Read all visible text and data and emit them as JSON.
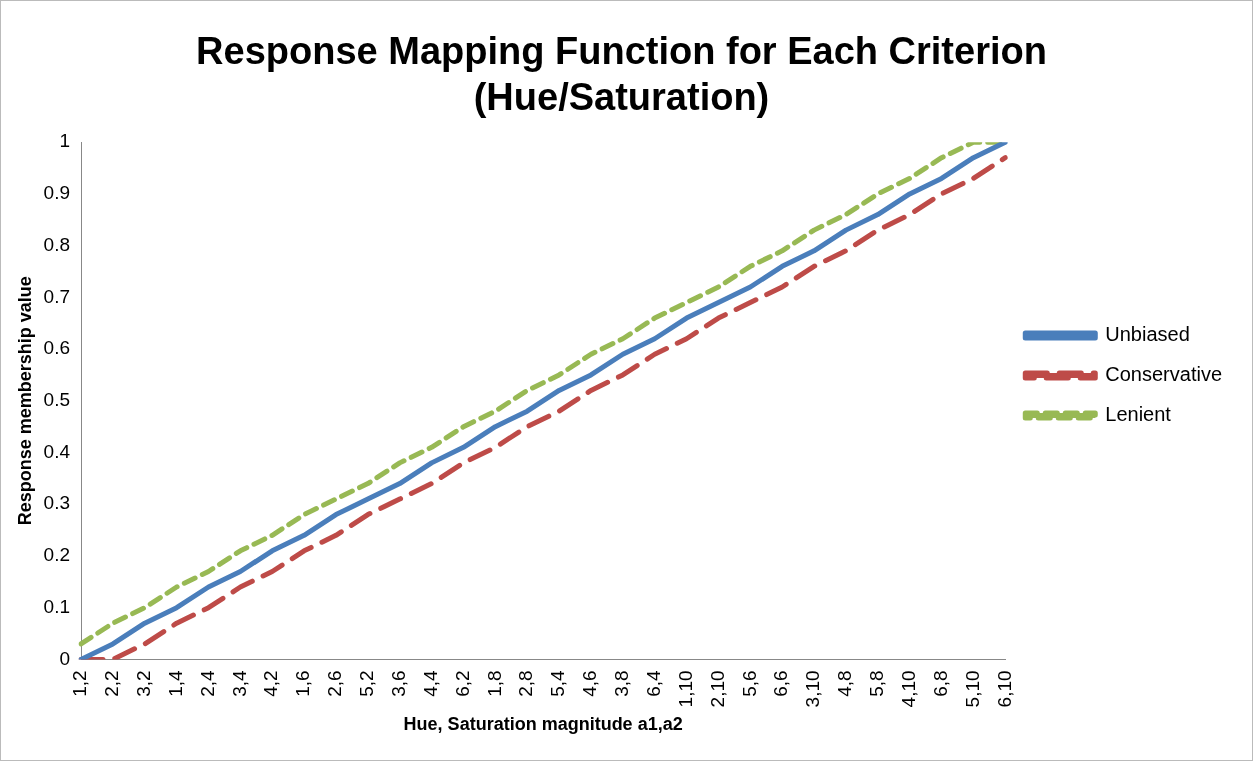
{
  "chart_data": {
    "type": "line",
    "title": "Response Mapping Function for Each Criterion (Hue/Saturation)",
    "xlabel": "Hue, Saturation magnitude a1,a2",
    "ylabel": "Response membership value",
    "categories": [
      "1,2",
      "2,2",
      "3,2",
      "1,4",
      "2,4",
      "3,4",
      "4,2",
      "1,6",
      "2,6",
      "5,2",
      "3,6",
      "4,4",
      "6,2",
      "1,8",
      "2,8",
      "5,4",
      "4,6",
      "3,8",
      "6,4",
      "1,10",
      "2,10",
      "5,6",
      "6,6",
      "3,10",
      "4,8",
      "5,8",
      "4,10",
      "6,8",
      "5,10",
      "6,10"
    ],
    "series": [
      {
        "name": "Unbiased",
        "color": "#4a7ebb",
        "line_style": "solid",
        "values": [
          0,
          0.03,
          0.07,
          0.1,
          0.14,
          0.17,
          0.21,
          0.24,
          0.28,
          0.31,
          0.34,
          0.38,
          0.41,
          0.45,
          0.48,
          0.52,
          0.55,
          0.59,
          0.62,
          0.66,
          0.69,
          0.72,
          0.76,
          0.79,
          0.83,
          0.86,
          0.9,
          0.93,
          0.97,
          1
        ]
      },
      {
        "name": "Conservative",
        "color": "#be4b48",
        "line_style": "dashed",
        "values": [
          0,
          0,
          0.03,
          0.07,
          0.1,
          0.14,
          0.17,
          0.21,
          0.24,
          0.28,
          0.31,
          0.34,
          0.38,
          0.41,
          0.45,
          0.48,
          0.52,
          0.55,
          0.59,
          0.62,
          0.66,
          0.69,
          0.72,
          0.76,
          0.79,
          0.83,
          0.86,
          0.9,
          0.93,
          0.97
        ]
      },
      {
        "name": "Lenient",
        "color": "#98b954",
        "line_style": "dotted",
        "values": [
          0.03,
          0.07,
          0.1,
          0.14,
          0.17,
          0.21,
          0.24,
          0.28,
          0.31,
          0.34,
          0.38,
          0.41,
          0.45,
          0.48,
          0.52,
          0.55,
          0.59,
          0.62,
          0.66,
          0.69,
          0.72,
          0.76,
          0.79,
          0.83,
          0.86,
          0.9,
          0.93,
          0.97,
          1,
          1
        ]
      }
    ],
    "ylim": [
      0,
      1
    ],
    "yticks": [
      0,
      0.1,
      0.2,
      0.3,
      0.4,
      0.5,
      0.6,
      0.7,
      0.8,
      0.9,
      1
    ],
    "grid": false,
    "legend": "right",
    "marker": "none"
  }
}
